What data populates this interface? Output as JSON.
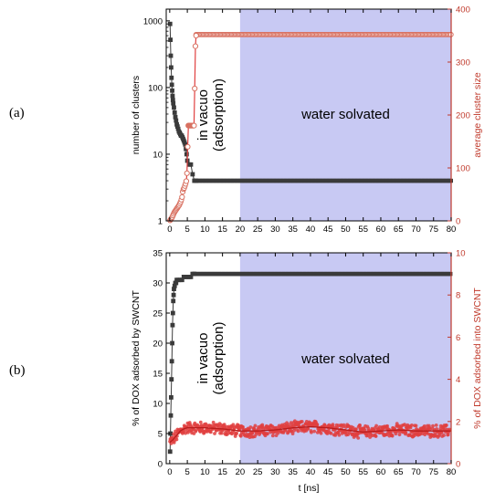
{
  "panel_labels": {
    "a": "(a)",
    "b": "(b)"
  },
  "colors": {
    "left_axis": "#000000",
    "right_axis": "#c0392b",
    "black_series": "#3a3a3a",
    "red_series": "#e04040",
    "red_open": "#d87060",
    "water_band": "#c8c9f3"
  },
  "chart_data": [
    {
      "type": "scatter",
      "panel": "(a)",
      "xlabel": "",
      "ylabel_left": "number of clusters",
      "ylabel_right": "average cluster size",
      "x_scale": "linear",
      "xlim": [
        -1,
        80
      ],
      "y_left_scale": "log",
      "ylim_left": [
        1,
        1500
      ],
      "y_right_scale": "linear",
      "ylim_right": [
        0,
        400
      ],
      "x_ticks": [
        0,
        5,
        10,
        15,
        20,
        25,
        30,
        35,
        40,
        45,
        50,
        55,
        60,
        65,
        70,
        75,
        80
      ],
      "y_left_ticks": [
        1,
        10,
        100,
        1000
      ],
      "y_right_ticks": [
        0,
        100,
        200,
        300,
        400
      ],
      "annotations": {
        "in_vacuo_line1": "in vacuo",
        "in_vacuo_line2": "(adsorption)",
        "water": "water solvated"
      },
      "water_region": [
        20,
        80
      ],
      "series": [
        {
          "axis": "left",
          "marker": "filled-square",
          "x": [
            0.1,
            0.2,
            0.3,
            0.4,
            0.5,
            0.6,
            0.7,
            0.8,
            0.9,
            1.0,
            1.2,
            1.4,
            1.6,
            1.8,
            2.0,
            2.2,
            2.4,
            2.6,
            2.8,
            3.0,
            3.2,
            3.4,
            3.6,
            3.8,
            4.0,
            4.2,
            4.4,
            4.6,
            4.8,
            5.0,
            5.5,
            6.0,
            6.5,
            7.0,
            7.5
          ],
          "y": [
            900,
            520,
            300,
            200,
            140,
            110,
            90,
            75,
            65,
            58,
            50,
            42,
            36,
            32,
            28,
            26,
            24,
            22,
            21,
            20,
            19,
            19,
            18,
            17,
            16,
            15,
            14,
            12,
            10,
            8,
            7,
            7,
            5,
            4,
            4
          ],
          "plateau": {
            "x_from": 7.5,
            "x_to": 80,
            "y": 4
          }
        },
        {
          "axis": "right",
          "marker": "open-circle",
          "x": [
            0.1,
            0.3,
            0.5,
            0.7,
            0.9,
            1.1,
            1.3,
            1.5,
            1.7,
            1.9,
            2.1,
            2.3,
            2.5,
            2.7,
            2.9,
            3.1,
            3.3,
            3.5,
            3.7,
            3.9,
            4.1,
            4.3,
            4.5,
            4.7,
            4.9,
            5.1,
            5.3,
            5.5,
            5.7,
            5.9,
            6.1,
            6.3,
            6.5,
            6.7,
            6.9,
            7.1,
            7.3,
            7.5
          ],
          "y": [
            1,
            3,
            5,
            7,
            10,
            13,
            16,
            18,
            20,
            22,
            24,
            26,
            28,
            30,
            33,
            36,
            40,
            45,
            55,
            60,
            62,
            66,
            70,
            75,
            90,
            140,
            180,
            180,
            180,
            180,
            180,
            180,
            180,
            180,
            180,
            250,
            330,
            350
          ],
          "plateau": {
            "x_from": 7.5,
            "x_to": 80,
            "y": 352
          }
        }
      ]
    },
    {
      "type": "scatter",
      "panel": "(b)",
      "xlabel": "t [ns]",
      "ylabel_left": "% of DOX adsorbed by SWCNT",
      "ylabel_right": "% of DOX adsorbed into SWCNT",
      "x_scale": "linear",
      "xlim": [
        -1,
        80
      ],
      "y_left_scale": "linear",
      "ylim_left": [
        0,
        35
      ],
      "y_right_scale": "linear",
      "ylim_right": [
        0,
        10
      ],
      "x_ticks": [
        0,
        5,
        10,
        15,
        20,
        25,
        30,
        35,
        40,
        45,
        50,
        55,
        60,
        65,
        70,
        75,
        80
      ],
      "y_left_ticks": [
        0,
        5,
        10,
        15,
        20,
        25,
        30,
        35
      ],
      "y_right_ticks": [
        0,
        2,
        4,
        6,
        8,
        10
      ],
      "annotations": {
        "in_vacuo_line1": "in vacuo",
        "in_vacuo_line2": "(adsorption)",
        "water": "water solvated"
      },
      "water_region": [
        20,
        80
      ],
      "series": [
        {
          "axis": "left",
          "marker": "filled-square",
          "x": [
            0.1,
            0.2,
            0.3,
            0.4,
            0.5,
            0.6,
            0.7,
            0.8,
            0.9,
            1.0,
            1.1,
            1.2,
            1.4,
            1.6,
            1.8,
            2.0,
            2.5,
            3.0,
            3.5,
            4.0,
            4.5,
            5.0,
            5.5,
            6.0,
            6.5,
            7.0
          ],
          "y": [
            2,
            5,
            8,
            11,
            14,
            17,
            20,
            23,
            25,
            27,
            28,
            29,
            29.5,
            30,
            30,
            30.5,
            30.5,
            30.5,
            30.5,
            31,
            31,
            31,
            31,
            31,
            31.5,
            31.5
          ],
          "plateau": {
            "x_from": 7.0,
            "x_to": 80,
            "y": 31.5
          }
        },
        {
          "axis": "right",
          "marker": "filled-circle",
          "noisy": true,
          "mean_curve_x": [
            0,
            1,
            2,
            3,
            4,
            5,
            7,
            10,
            15,
            20,
            25,
            30,
            35,
            40,
            45,
            50,
            55,
            60,
            65,
            70,
            75,
            80
          ],
          "mean_curve_y": [
            1.0,
            1.15,
            1.35,
            1.55,
            1.65,
            1.7,
            1.7,
            1.7,
            1.65,
            1.55,
            1.55,
            1.6,
            1.7,
            1.75,
            1.7,
            1.6,
            1.5,
            1.55,
            1.6,
            1.55,
            1.55,
            1.55
          ],
          "spread": 0.25
        }
      ]
    }
  ]
}
